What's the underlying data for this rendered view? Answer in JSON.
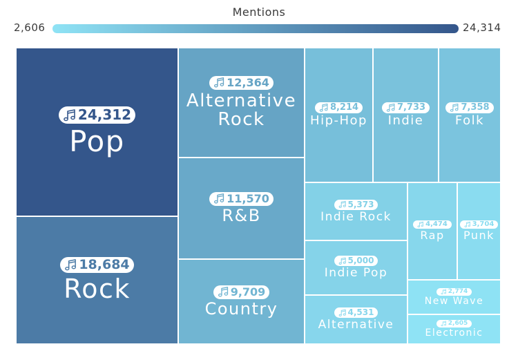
{
  "chart_data": {
    "type": "treemap",
    "legend": {
      "title": "Mentions",
      "min_label": "2,606",
      "max_label": "24,314",
      "min": 2606,
      "max": 24314,
      "color_low": "#8fe3f5",
      "color_high": "#34568b"
    },
    "items": [
      {
        "name": "Pop",
        "value": 24312,
        "value_label": "24,312"
      },
      {
        "name": "Rock",
        "value": 18684,
        "value_label": "18,684"
      },
      {
        "name": "Alternative Rock",
        "value": 12364,
        "value_label": "12,364"
      },
      {
        "name": "R&B",
        "value": 11570,
        "value_label": "11,570"
      },
      {
        "name": "Country",
        "value": 9709,
        "value_label": "9,709"
      },
      {
        "name": "Hip-Hop",
        "value": 8214,
        "value_label": "8,214"
      },
      {
        "name": "Indie",
        "value": 7733,
        "value_label": "7,733"
      },
      {
        "name": "Folk",
        "value": 7358,
        "value_label": "7,358"
      },
      {
        "name": "Indie Rock",
        "value": 5373,
        "value_label": "5,373"
      },
      {
        "name": "Indie Pop",
        "value": 5000,
        "value_label": "5,000"
      },
      {
        "name": "Alternative",
        "value": 4531,
        "value_label": "4,531"
      },
      {
        "name": "Rap",
        "value": 4474,
        "value_label": "4,474"
      },
      {
        "name": "Punk",
        "value": 3704,
        "value_label": "3,704"
      },
      {
        "name": "New Wave",
        "value": 2774,
        "value_label": "2,774"
      },
      {
        "name": "Electronic",
        "value": 2605,
        "value_label": "2,605"
      }
    ],
    "icon": "music-note-icon"
  }
}
